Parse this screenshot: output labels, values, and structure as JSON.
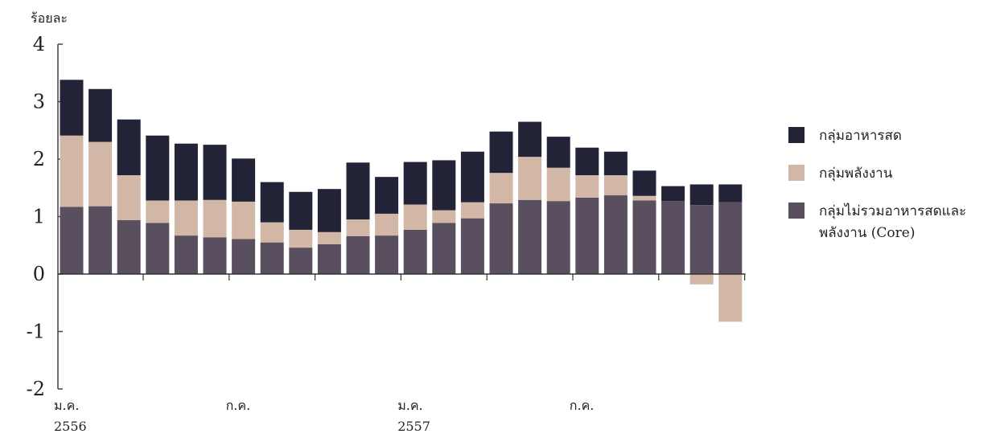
{
  "chart_data": {
    "type": "bar",
    "stacked": true,
    "unit_label": "ร้อยละ",
    "ylim": [
      -2,
      4
    ],
    "yticks": [
      -2,
      -1,
      0,
      1,
      2,
      3,
      4
    ],
    "x_tick_labels": [
      {
        "index": 0,
        "lines": [
          "ม.ค.",
          "2556"
        ]
      },
      {
        "index": 6,
        "lines": [
          "ก.ค."
        ]
      },
      {
        "index": 12,
        "lines": [
          "ม.ค.",
          "2557"
        ]
      },
      {
        "index": 18,
        "lines": [
          "ก.ค."
        ]
      }
    ],
    "series": [
      {
        "name": "กลุ่มไม่รวมอาหารสดและพลังงาน (Core)",
        "legend_lines": [
          "กลุ่มไม่รวมอาหารสดและ",
          "พลังงาน (Core)"
        ],
        "color": "#5a4f5f",
        "values": [
          1.17,
          1.18,
          0.94,
          0.89,
          0.67,
          0.64,
          0.61,
          0.55,
          0.46,
          0.52,
          0.66,
          0.67,
          0.77,
          0.89,
          0.97,
          1.23,
          1.29,
          1.27,
          1.33,
          1.37,
          1.28,
          1.27,
          1.2,
          1.25
        ]
      },
      {
        "name": "กลุ่มพลังงาน",
        "legend_lines": [
          "กลุ่มพลังงาน"
        ],
        "color": "#d2b7a7",
        "values": [
          1.24,
          1.12,
          0.78,
          0.39,
          0.61,
          0.65,
          0.65,
          0.35,
          0.31,
          0.21,
          0.29,
          0.38,
          0.44,
          0.22,
          0.28,
          0.53,
          0.75,
          0.58,
          0.39,
          0.35,
          0.08,
          0.0,
          -0.18,
          -0.83
        ]
      },
      {
        "name": "กลุ่มอาหารสด",
        "legend_lines": [
          "กลุ่มอาหารสด"
        ],
        "color": "#232337",
        "values": [
          0.97,
          0.92,
          0.97,
          1.13,
          0.99,
          0.96,
          0.75,
          0.7,
          0.66,
          0.75,
          0.99,
          0.64,
          0.74,
          0.87,
          0.88,
          0.72,
          0.61,
          0.54,
          0.48,
          0.41,
          0.44,
          0.26,
          0.36,
          0.31
        ]
      }
    ],
    "legend_order": [
      2,
      1,
      0
    ],
    "legend_position": "right"
  }
}
